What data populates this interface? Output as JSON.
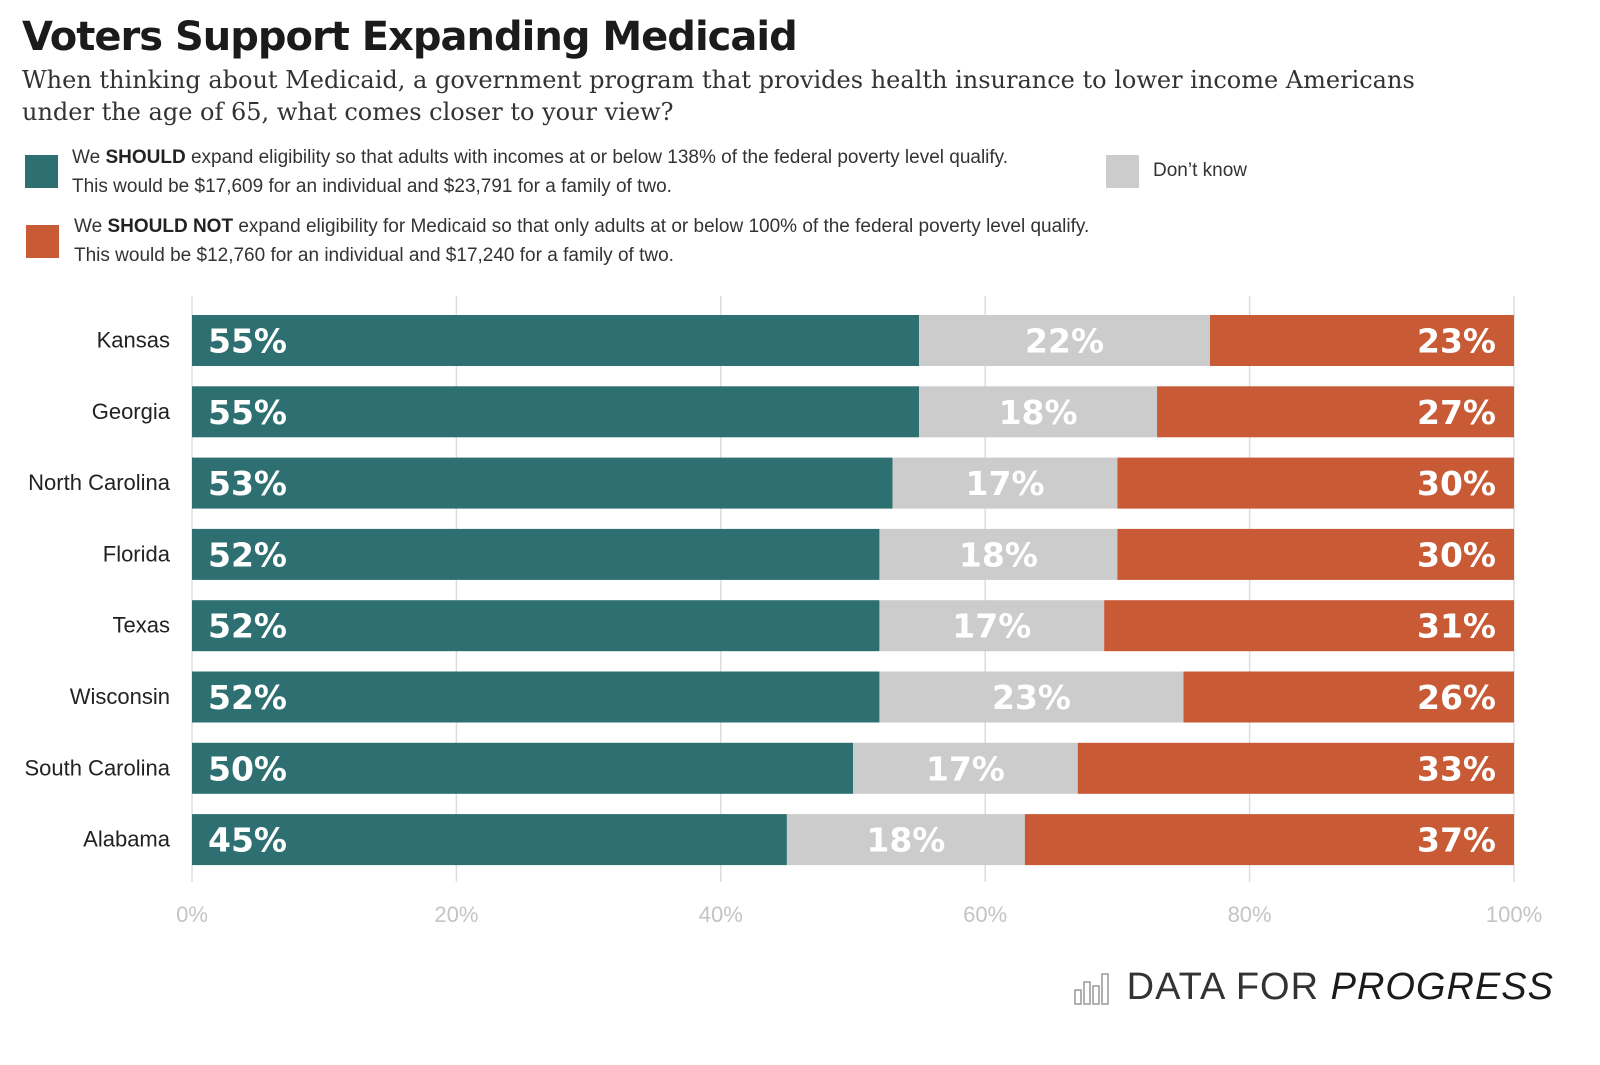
{
  "title": "Voters Support Expanding Medicaid",
  "subtitle": "When thinking about Medicaid, a government program that provides health insurance to lower income Americans under the age of 65, what comes closer to your view?",
  "legend": {
    "should": {
      "prefix": "We ",
      "bold": "SHOULD",
      "rest": " expand eligibility so that adults with incomes at or below 138% of the federal poverty level qualify.",
      "line2": "This would be $17,609 for an individual and $23,791 for a family of two.",
      "color": "#2e7072"
    },
    "should_not": {
      "prefix": "We ",
      "bold": "SHOULD NOT",
      "rest": " expand eligibility for Medicaid so that only adults at or below 100% of the federal poverty level qualify.",
      "line2": "This would be $12,760 for an individual and $17,240 for a family of two.",
      "color": "#c85a35"
    },
    "dont_know": {
      "label": "Don’t know",
      "color": "#cccccc"
    }
  },
  "chart_data": {
    "type": "bar",
    "orientation": "horizontal",
    "stacked": true,
    "categories": [
      "Kansas",
      "Georgia",
      "North Carolina",
      "Florida",
      "Texas",
      "Wisconsin",
      "South Carolina",
      "Alabama"
    ],
    "series": [
      {
        "name": "We SHOULD expand eligibility",
        "color": "#2e7072",
        "values": [
          55,
          55,
          53,
          52,
          52,
          52,
          50,
          45
        ]
      },
      {
        "name": "Don’t know",
        "color": "#cccccc",
        "values": [
          22,
          18,
          17,
          18,
          17,
          23,
          17,
          18
        ]
      },
      {
        "name": "We SHOULD NOT expand eligibility",
        "color": "#c85a35",
        "values": [
          23,
          27,
          30,
          30,
          31,
          26,
          33,
          37
        ]
      }
    ],
    "value_suffix": "%",
    "xlim": [
      0,
      100
    ],
    "xticks": [
      "0%",
      "20%",
      "40%",
      "60%",
      "80%",
      "100%"
    ],
    "xtick_values": [
      0,
      20,
      40,
      60,
      80,
      100
    ],
    "grid": true,
    "legend_position": "top"
  },
  "brand": {
    "part1": "DATA FOR ",
    "part2": "PROGRESS",
    "icon": "bar-chart-logo-icon"
  }
}
